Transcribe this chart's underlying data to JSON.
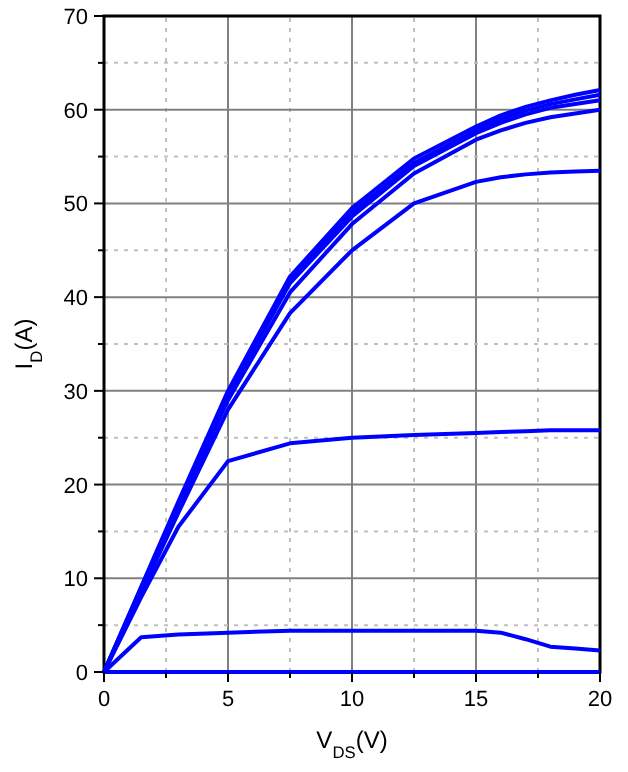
{
  "chart_data": {
    "type": "line",
    "xlabel": "V$_{DS}$(V)",
    "ylabel": "I$_{D}$(A)",
    "xlim": [
      0,
      20
    ],
    "ylim": [
      0,
      70
    ],
    "xticks": [
      0,
      {
        "value": 2.5,
        "label": null
      },
      5,
      {
        "value": 7.5,
        "label": null
      },
      10,
      {
        "value": 12.5,
        "label": null
      },
      15,
      {
        "value": 17.5,
        "label": null
      },
      20
    ],
    "yticks": [
      0,
      {
        "value": 5,
        "label": null
      },
      10,
      {
        "value": 15,
        "label": null
      },
      20,
      {
        "value": 25,
        "label": null
      },
      30,
      {
        "value": 35,
        "label": null
      },
      40,
      {
        "value": 45,
        "label": null
      },
      50,
      {
        "value": 55,
        "label": null
      },
      60,
      {
        "value": 65,
        "label": null
      },
      70
    ],
    "grid": true,
    "marker": "none",
    "line_style": "solid",
    "x": [
      0,
      1.5,
      3,
      5,
      7.5,
      10,
      12.5,
      15,
      16,
      17,
      18,
      19,
      20
    ],
    "series": [
      {
        "color": "#0000ff",
        "values": [
          0,
          0,
          0,
          0,
          0,
          0,
          0,
          0,
          0,
          0,
          0,
          0,
          0
        ]
      },
      {
        "color": "#0000ff",
        "values": [
          0,
          3.7,
          4,
          4.2,
          4.4,
          4.4,
          4.4,
          4.4,
          4.2,
          3.5,
          2.7,
          2.5,
          2.3
        ]
      },
      {
        "color": "#0000ff",
        "values": [
          0,
          8,
          15.5,
          22.5,
          24.4,
          25,
          25.3,
          25.5,
          25.6,
          25.7,
          25.8,
          25.8,
          25.8
        ]
      },
      {
        "color": "#0000ff",
        "values": [
          0,
          8.5,
          17,
          28,
          38.3,
          45,
          50,
          52.3,
          52.8,
          53.1,
          53.3,
          53.4,
          53.5
        ]
      },
      {
        "color": "#0000ff",
        "values": [
          0,
          8.8,
          17.5,
          29,
          40.5,
          47.8,
          53.2,
          56.8,
          57.8,
          58.6,
          59.2,
          59.6,
          60
        ]
      },
      {
        "color": "#0000ff",
        "values": [
          0,
          8.9,
          17.8,
          29.5,
          41.5,
          48.6,
          54,
          57.5,
          58.6,
          59.5,
          60.2,
          60.6,
          61
        ]
      },
      {
        "color": "#0000ff",
        "values": [
          0,
          9,
          18,
          29.7,
          41.8,
          49,
          54.3,
          57.8,
          59,
          59.9,
          60.6,
          61.1,
          61.6
        ]
      },
      {
        "color": "#0000ff",
        "values": [
          0,
          9.1,
          18.2,
          30,
          42.2,
          49.5,
          54.8,
          58.2,
          59.4,
          60.3,
          61,
          61.6,
          62.1
        ]
      }
    ]
  }
}
